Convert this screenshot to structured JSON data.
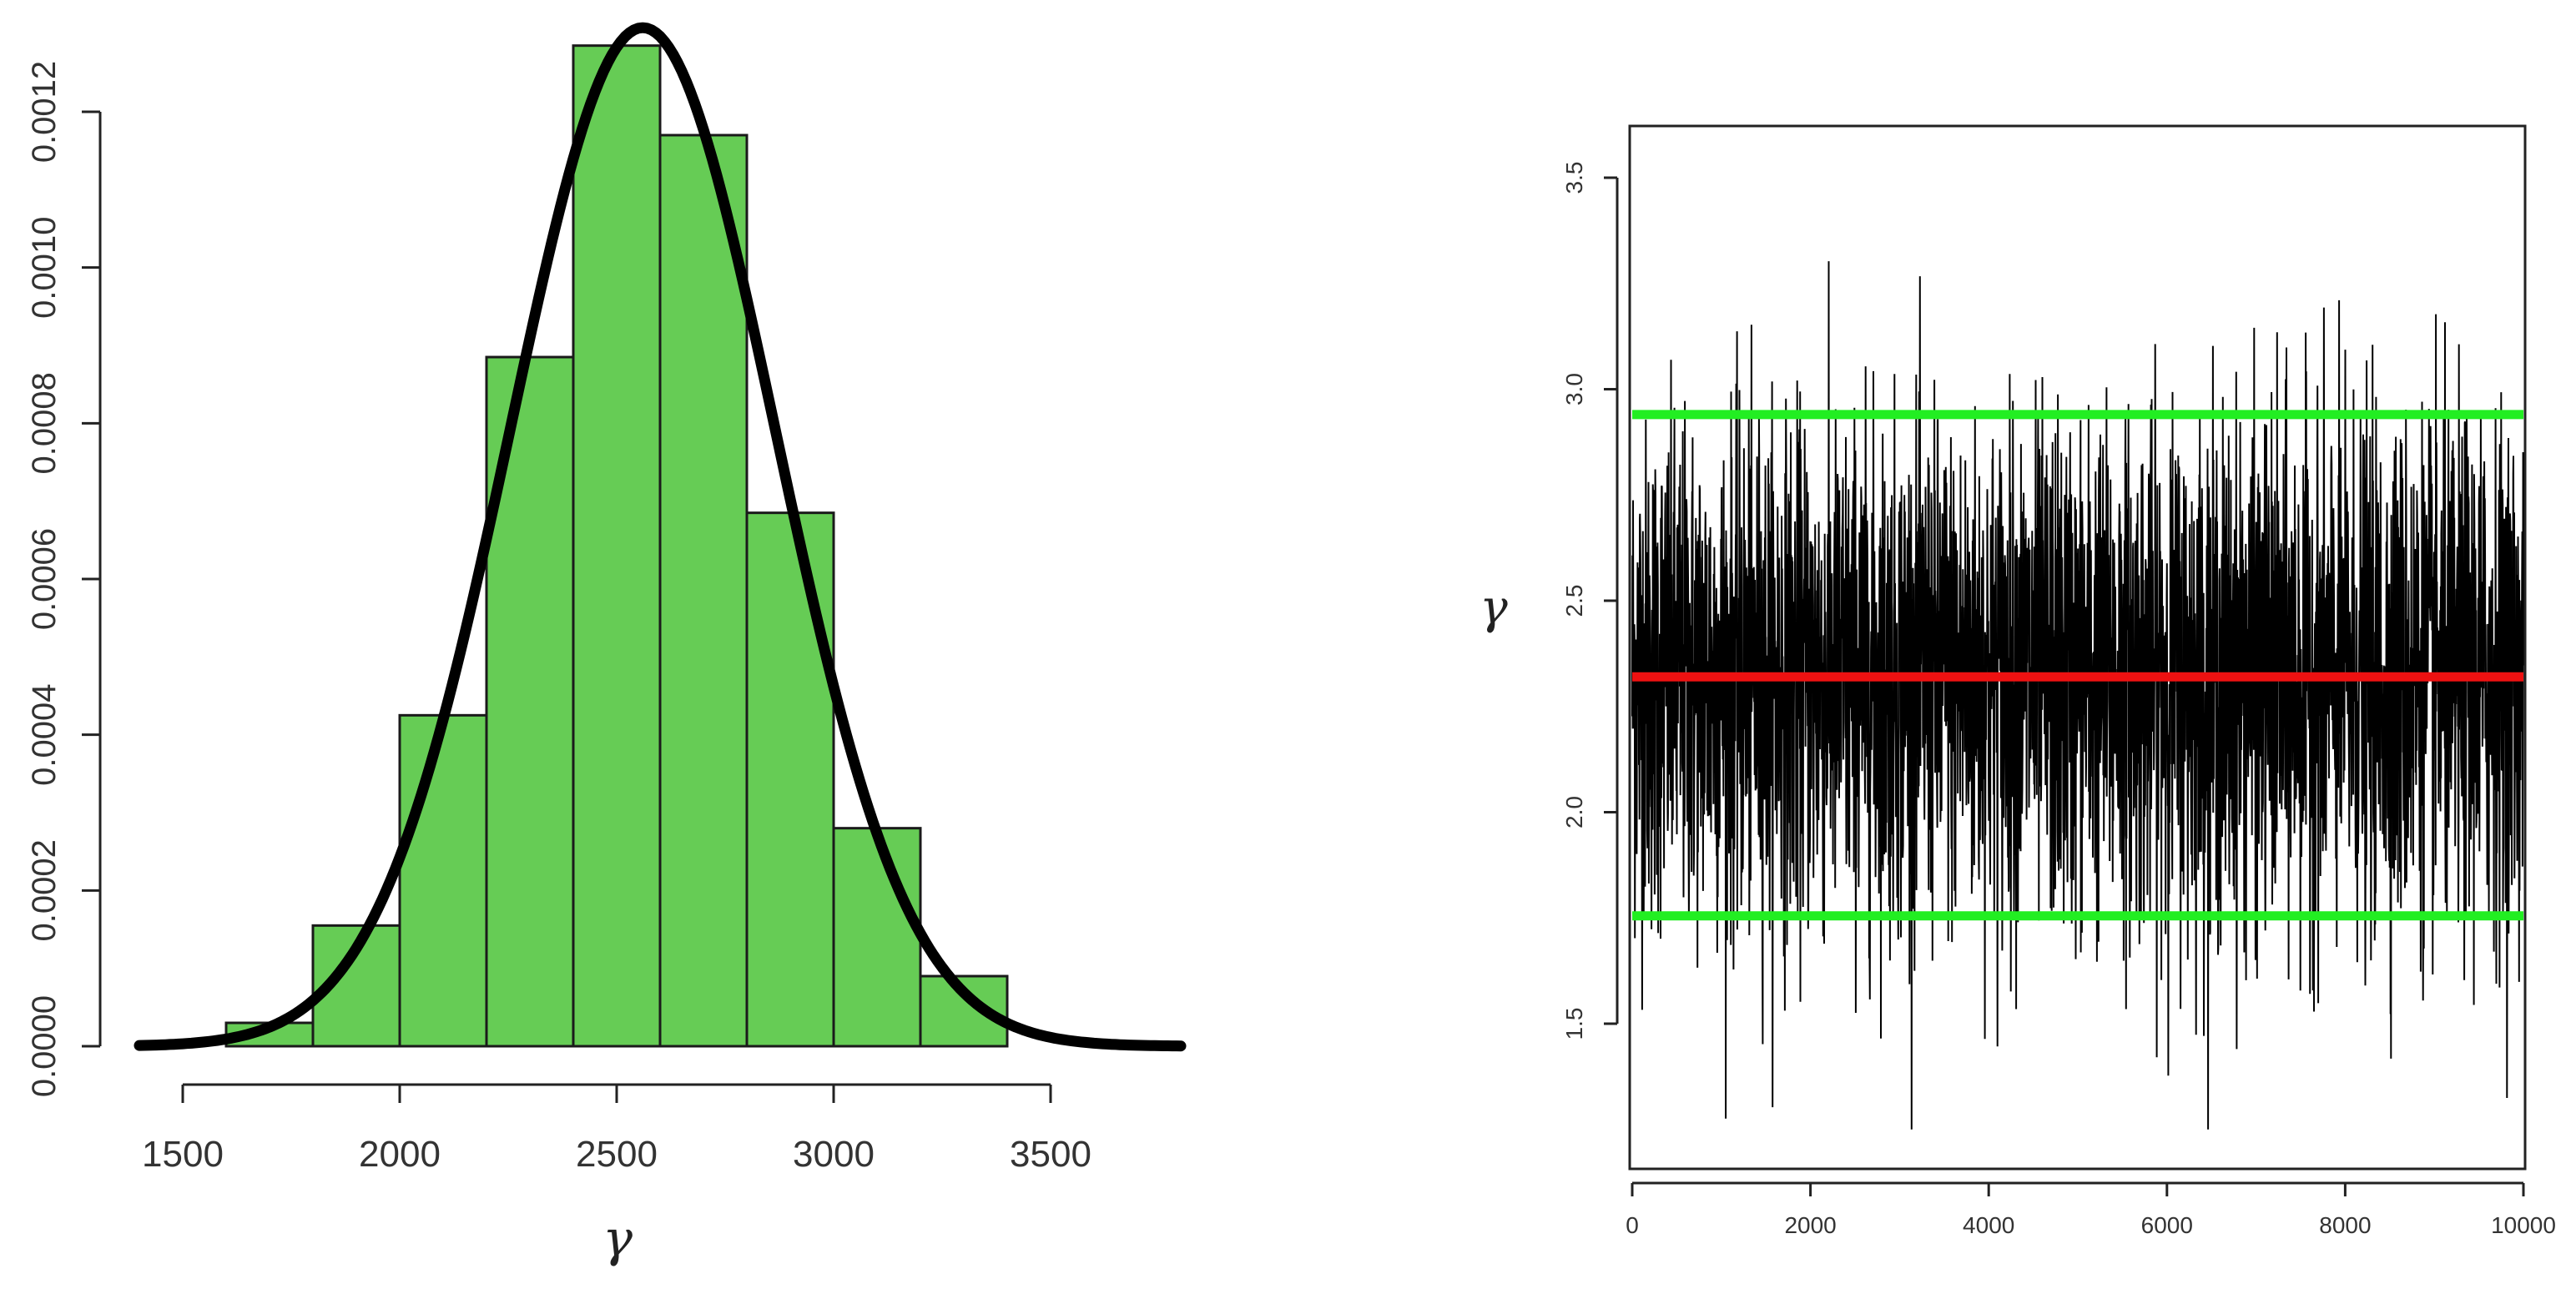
{
  "chart_data": [
    {
      "type": "bar",
      "subtype": "histogram-with-density-curve",
      "xlabel": "γ",
      "ylabel": "",
      "xlim": [
        1400,
        3800
      ],
      "ylim": [
        0,
        0.0013
      ],
      "x_ticks": [
        1500,
        2000,
        2500,
        3000,
        3500
      ],
      "y_ticks": [
        "0.0000",
        "0.0002",
        "0.0004",
        "0.0006",
        "0.0008",
        "0.0010",
        "0.0012"
      ],
      "bins": [
        {
          "x0": 1600,
          "x1": 1800,
          "density": 3e-05
        },
        {
          "x0": 1800,
          "x1": 2000,
          "density": 0.000155
        },
        {
          "x0": 2000,
          "x1": 2200,
          "density": 0.000425
        },
        {
          "x0": 2200,
          "x1": 2400,
          "density": 0.000885
        },
        {
          "x0": 2400,
          "x1": 2600,
          "density": 0.001285
        },
        {
          "x0": 2600,
          "x1": 2800,
          "density": 0.00117
        },
        {
          "x0": 2800,
          "x1": 3000,
          "density": 0.000685
        },
        {
          "x0": 3000,
          "x1": 3200,
          "density": 0.00028
        },
        {
          "x0": 3200,
          "x1": 3400,
          "density": 9e-05
        }
      ],
      "density_curve": {
        "type": "normal",
        "mean": 2560,
        "sd": 305,
        "range": [
          1400,
          3800
        ]
      },
      "grid": false,
      "colors": {
        "bars": "#66cc55",
        "bar_border": "#1a1a1a",
        "curve": "#000000"
      }
    },
    {
      "type": "line",
      "subtype": "trace-plot",
      "xlabel": "",
      "ylabel": "γ",
      "xlim": [
        0,
        10000
      ],
      "ylim": [
        1.22,
        3.62
      ],
      "x_ticks": [
        0,
        2000,
        4000,
        6000,
        8000,
        10000
      ],
      "y_ticks": [
        "1.5",
        "2.0",
        "2.5",
        "3.0",
        "3.5"
      ],
      "series_summary": {
        "n_iterations": 10000,
        "center": 2.32,
        "spread": 0.3,
        "min": 1.25,
        "max": 3.52
      },
      "reference_lines": [
        {
          "y": 2.94,
          "color": "#22ee22"
        },
        {
          "y": 2.32,
          "color": "#ee1111"
        },
        {
          "y": 1.755,
          "color": "#22ee22"
        }
      ],
      "grid": false,
      "colors": {
        "trace": "#000000"
      }
    }
  ]
}
